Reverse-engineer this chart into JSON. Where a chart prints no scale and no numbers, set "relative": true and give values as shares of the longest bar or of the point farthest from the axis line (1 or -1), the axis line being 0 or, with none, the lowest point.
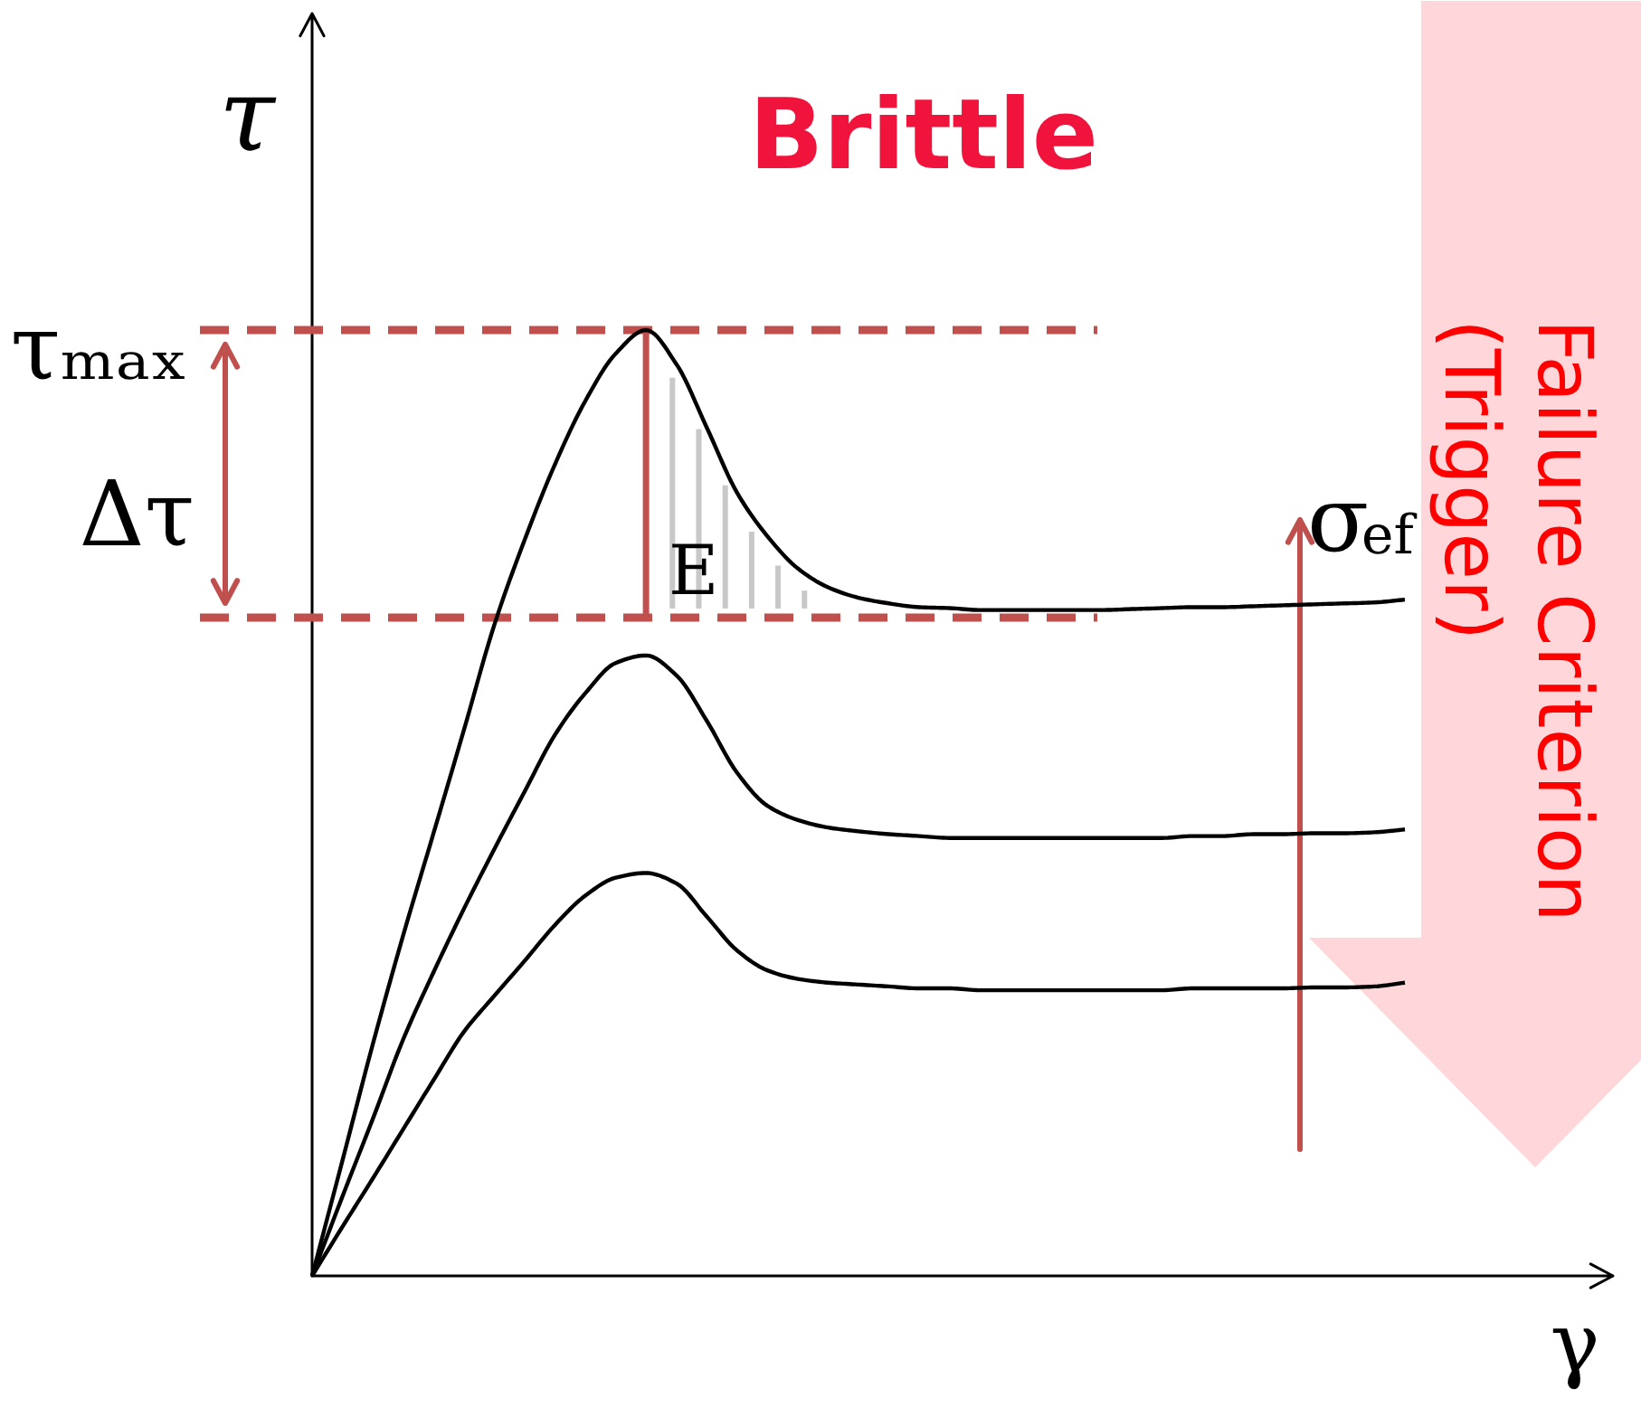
{
  "chart_data": {
    "type": "line",
    "title": "Brittle",
    "xlabel": "γ",
    "ylabel": "τ",
    "relative": true,
    "categories": [
      null,
      null,
      null,
      null,
      null,
      null,
      null,
      null,
      null,
      null,
      null,
      null,
      null,
      null,
      null,
      null,
      null,
      null,
      null,
      null,
      null,
      null,
      null,
      null,
      null,
      null,
      null,
      null,
      null,
      null,
      null,
      null,
      null,
      null,
      null,
      null,
      null
    ],
    "series": [
      {
        "color": "#000000",
        "values": [
          0,
          0.122,
          0.245,
          0.36,
          0.468,
          0.577,
          0.688,
          0.778,
          0.858,
          0.925,
          0.975,
          1,
          0.964,
          0.897,
          0.828,
          0.782,
          0.748,
          0.728,
          0.717,
          0.711,
          0.707,
          0.706,
          0.704,
          0.704,
          0.704,
          0.704,
          0.704,
          0.705,
          0.706,
          0.707,
          0.707,
          0.708,
          0.709,
          0.71,
          0.711,
          0.712,
          0.715
        ]
      },
      {
        "color": "#000000",
        "values": [
          0,
          0.084,
          0.166,
          0.25,
          0.321,
          0.388,
          0.451,
          0.512,
          0.572,
          0.616,
          0.648,
          0.656,
          0.635,
          0.587,
          0.532,
          0.497,
          0.482,
          0.474,
          0.47,
          0.467,
          0.465,
          0.463,
          0.463,
          0.463,
          0.463,
          0.463,
          0.463,
          0.463,
          0.463,
          0.465,
          0.465,
          0.467,
          0.467,
          0.468,
          0.468,
          0.469,
          0.472
        ]
      },
      {
        "color": "#000000",
        "values": [
          0,
          0.052,
          0.103,
          0.155,
          0.207,
          0.258,
          0.296,
          0.333,
          0.371,
          0.402,
          0.421,
          0.426,
          0.415,
          0.38,
          0.344,
          0.323,
          0.314,
          0.31,
          0.308,
          0.306,
          0.304,
          0.304,
          0.302,
          0.302,
          0.302,
          0.302,
          0.302,
          0.302,
          0.302,
          0.304,
          0.304,
          0.304,
          0.304,
          0.305,
          0.305,
          0.306,
          0.31
        ]
      }
    ],
    "ref_lines": [
      {
        "axis": "y",
        "value": 1,
        "label": "τₘₐₓ",
        "color": "#c0504d",
        "line_style": "dashed"
      },
      {
        "axis": "y",
        "value": 0.696,
        "color": "#c0504d",
        "line_style": "dashed"
      }
    ],
    "annotations": [
      "Δτ",
      "E",
      "σ$_{ef}$",
      "Failure Criterion\n(Trigger)"
    ]
  }
}
